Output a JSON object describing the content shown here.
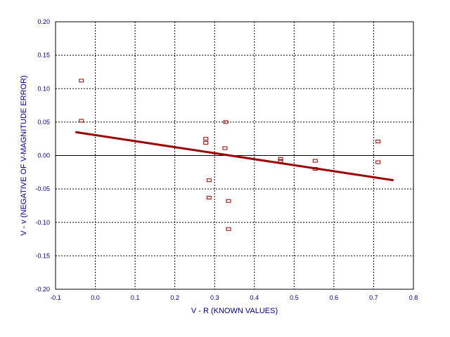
{
  "chart_data": {
    "type": "scatter",
    "xlabel": "V - R (KNOWN VALUES)",
    "ylabel": "V - v (NEGATIVE OF V-MAGNITUDE ERROR)",
    "xlim": [
      -0.1,
      0.8
    ],
    "ylim": [
      -0.2,
      0.2
    ],
    "x_ticks": [
      "-0.1",
      "0.0",
      "0.1",
      "0.2",
      "0.3",
      "0.4",
      "0.5",
      "0.6",
      "0.7",
      "0.8"
    ],
    "y_ticks": [
      "0.20",
      "0.15",
      "0.10",
      "0.05",
      "0.00",
      "-0.05",
      "-0.10",
      "-0.15",
      "-0.20"
    ],
    "grid": true,
    "zero_line": true,
    "points": [
      {
        "x": -0.035,
        "y": 0.112
      },
      {
        "x": -0.035,
        "y": 0.052
      },
      {
        "x": 0.278,
        "y": 0.025
      },
      {
        "x": 0.278,
        "y": 0.019
      },
      {
        "x": 0.328,
        "y": 0.05
      },
      {
        "x": 0.326,
        "y": 0.011
      },
      {
        "x": 0.286,
        "y": -0.037
      },
      {
        "x": 0.286,
        "y": -0.063
      },
      {
        "x": 0.335,
        "y": -0.068
      },
      {
        "x": 0.335,
        "y": -0.11
      },
      {
        "x": 0.466,
        "y": -0.005
      },
      {
        "x": 0.466,
        "y": -0.008
      },
      {
        "x": 0.553,
        "y": -0.008
      },
      {
        "x": 0.553,
        "y": -0.02
      },
      {
        "x": 0.711,
        "y": 0.021
      },
      {
        "x": 0.711,
        "y": -0.01
      }
    ],
    "fit_line": {
      "x": [
        -0.05,
        0.75
      ],
      "y": [
        0.035,
        -0.037
      ]
    },
    "colors": {
      "marker": "#8b0000",
      "fit_line": "#990000",
      "text": "#000080",
      "grid": "#000000"
    }
  }
}
